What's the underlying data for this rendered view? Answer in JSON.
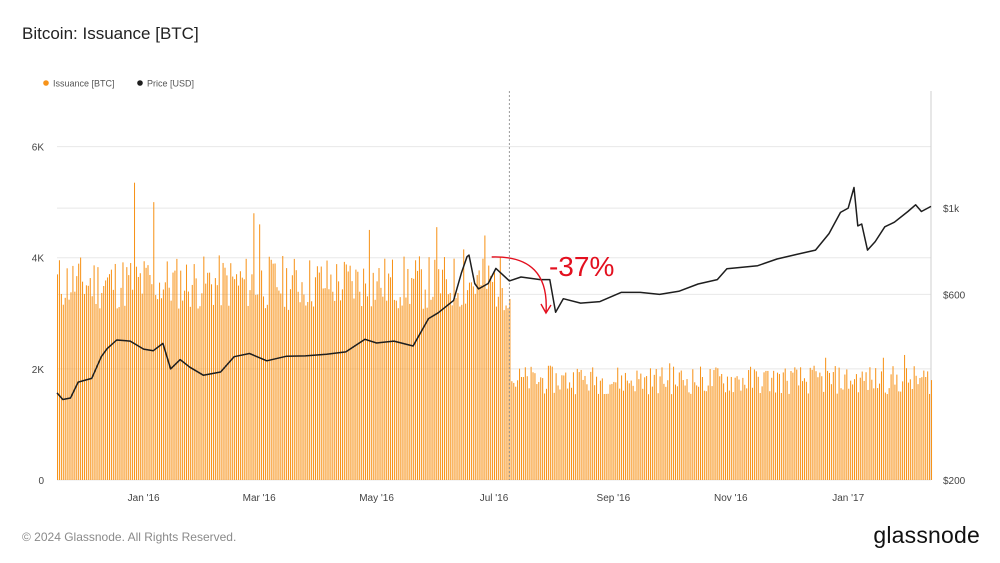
{
  "title": "Bitcoin: Issuance [BTC]",
  "footer": "© 2024 Glassnode. All Rights Reserved.",
  "brand": "glassnode",
  "colors": {
    "issuance": "#f7931a",
    "price": "#1e1e1e",
    "annotation": "#e3101f",
    "grid": "#e8e8e8"
  },
  "chart_data": {
    "type": "bar",
    "title": "Bitcoin: Issuance [BTC]",
    "legend_position": "top-left",
    "grid": true,
    "x_range": [
      "2015-11-17",
      "2017-02-13"
    ],
    "x_ticks": [
      {
        "date": "2016-01-01",
        "label": "Jan '16"
      },
      {
        "date": "2016-03-01",
        "label": "Mar '16"
      },
      {
        "date": "2016-05-01",
        "label": "May '16"
      },
      {
        "date": "2016-07-01",
        "label": "Jul '16"
      },
      {
        "date": "2016-09-01",
        "label": "Sep '16"
      },
      {
        "date": "2016-11-01",
        "label": "Nov '16"
      },
      {
        "date": "2017-01-01",
        "label": "Jan '17"
      }
    ],
    "y_left": {
      "label": "",
      "range": [
        0,
        7000
      ],
      "ticks": [
        {
          "v": 0,
          "label": "0"
        },
        {
          "v": 2000,
          "label": "2K"
        },
        {
          "v": 4000,
          "label": "4K"
        },
        {
          "v": 6000,
          "label": "6K"
        }
      ]
    },
    "y_right": {
      "label": "",
      "scale": "log",
      "range": [
        200,
        2000
      ],
      "ticks": [
        {
          "v": 200,
          "label": "$200"
        },
        {
          "v": 600,
          "label": "$600"
        },
        {
          "v": 1000,
          "label": "$1k"
        }
      ]
    },
    "event_line_date": "2016-07-09",
    "series": [
      {
        "name": "Issuance [BTC]",
        "axis": "left",
        "kind": "bar",
        "segments": [
          {
            "start": "2015-11-17",
            "end": "2016-07-09",
            "base": 3550,
            "noise": 500,
            "spikes": [
              {
                "date": "2015-12-27",
                "value": 5350
              },
              {
                "date": "2016-01-06",
                "value": 5000
              },
              {
                "date": "2016-02-27",
                "value": 4800
              },
              {
                "date": "2016-03-01",
                "value": 4600
              },
              {
                "date": "2016-04-27",
                "value": 4500
              },
              {
                "date": "2016-06-01",
                "value": 4550
              },
              {
                "date": "2016-06-15",
                "value": 4150
              },
              {
                "date": "2016-06-26",
                "value": 4400
              }
            ]
          },
          {
            "start": "2016-07-10",
            "end": "2017-02-13",
            "base": 1800,
            "noise": 260,
            "spikes": [
              {
                "date": "2016-08-13",
                "value": 2000
              },
              {
                "date": "2016-09-30",
                "value": 2100
              },
              {
                "date": "2016-12-20",
                "value": 2200
              },
              {
                "date": "2017-01-19",
                "value": 2200
              },
              {
                "date": "2017-01-30",
                "value": 2250
              }
            ]
          }
        ]
      },
      {
        "name": "Price [USD]",
        "axis": "right",
        "kind": "line",
        "points": [
          [
            "2015-11-17",
            335
          ],
          [
            "2015-11-20",
            322
          ],
          [
            "2015-11-24",
            325
          ],
          [
            "2015-11-28",
            357
          ],
          [
            "2015-12-05",
            365
          ],
          [
            "2015-12-10",
            415
          ],
          [
            "2015-12-13",
            435
          ],
          [
            "2015-12-18",
            458
          ],
          [
            "2015-12-25",
            455
          ],
          [
            "2016-01-01",
            434
          ],
          [
            "2016-01-06",
            430
          ],
          [
            "2016-01-11",
            449
          ],
          [
            "2016-01-15",
            386
          ],
          [
            "2016-01-20",
            408
          ],
          [
            "2016-01-25",
            390
          ],
          [
            "2016-02-01",
            372
          ],
          [
            "2016-02-10",
            379
          ],
          [
            "2016-02-17",
            415
          ],
          [
            "2016-02-25",
            423
          ],
          [
            "2016-03-05",
            405
          ],
          [
            "2016-03-15",
            416
          ],
          [
            "2016-03-25",
            417
          ],
          [
            "2016-04-05",
            421
          ],
          [
            "2016-04-15",
            427
          ],
          [
            "2016-04-25",
            460
          ],
          [
            "2016-05-01",
            450
          ],
          [
            "2016-05-10",
            455
          ],
          [
            "2016-05-20",
            442
          ],
          [
            "2016-05-28",
            520
          ],
          [
            "2016-06-02",
            538
          ],
          [
            "2016-06-10",
            579
          ],
          [
            "2016-06-14",
            680
          ],
          [
            "2016-06-17",
            750
          ],
          [
            "2016-06-18",
            757
          ],
          [
            "2016-06-21",
            640
          ],
          [
            "2016-06-23",
            620
          ],
          [
            "2016-06-28",
            640
          ],
          [
            "2016-07-02",
            700
          ],
          [
            "2016-07-09",
            650
          ],
          [
            "2016-07-15",
            665
          ],
          [
            "2016-07-25",
            655
          ],
          [
            "2016-07-30",
            655
          ],
          [
            "2016-08-02",
            540
          ],
          [
            "2016-08-06",
            585
          ],
          [
            "2016-08-15",
            570
          ],
          [
            "2016-08-25",
            575
          ],
          [
            "2016-09-05",
            607
          ],
          [
            "2016-09-15",
            607
          ],
          [
            "2016-09-25",
            600
          ],
          [
            "2016-10-05",
            611
          ],
          [
            "2016-10-15",
            638
          ],
          [
            "2016-10-25",
            655
          ],
          [
            "2016-10-30",
            698
          ],
          [
            "2016-11-05",
            703
          ],
          [
            "2016-11-15",
            711
          ],
          [
            "2016-11-25",
            740
          ],
          [
            "2016-12-05",
            760
          ],
          [
            "2016-12-15",
            780
          ],
          [
            "2016-12-22",
            860
          ],
          [
            "2016-12-28",
            975
          ],
          [
            "2017-01-01",
            1000
          ],
          [
            "2017-01-04",
            1130
          ],
          [
            "2017-01-06",
            900
          ],
          [
            "2017-01-08",
            910
          ],
          [
            "2017-01-11",
            780
          ],
          [
            "2017-01-15",
            820
          ],
          [
            "2017-01-20",
            895
          ],
          [
            "2017-01-25",
            920
          ],
          [
            "2017-02-01",
            980
          ],
          [
            "2017-02-05",
            1020
          ],
          [
            "2017-02-08",
            980
          ],
          [
            "2017-02-13",
            1010
          ]
        ]
      }
    ],
    "annotations": [
      {
        "text": "-37%",
        "date_from": "2016-07-05",
        "date_to": "2016-07-28"
      }
    ]
  }
}
